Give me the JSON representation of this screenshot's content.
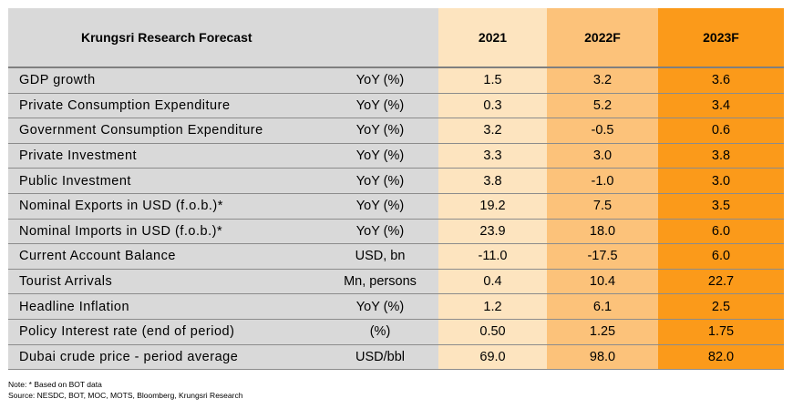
{
  "chart_data": {
    "type": "table",
    "title": "Krungsri Research Forecast",
    "columns": [
      "2021",
      "2022F",
      "2023F"
    ],
    "rows": [
      {
        "label": "GDP growth",
        "unit": "YoY (%)",
        "values": [
          "1.5",
          "3.2",
          "3.6"
        ]
      },
      {
        "label": "Private Consumption Expenditure",
        "unit": "YoY (%)",
        "values": [
          "0.3",
          "5.2",
          "3.4"
        ]
      },
      {
        "label": "Government Consumption Expenditure",
        "unit": "YoY (%)",
        "values": [
          "3.2",
          "-0.5",
          "0.6"
        ]
      },
      {
        "label": "Private Investment",
        "unit": "YoY (%)",
        "values": [
          "3.3",
          "3.0",
          "3.8"
        ]
      },
      {
        "label": "Public Investment",
        "unit": "YoY (%)",
        "values": [
          "3.8",
          "-1.0",
          "3.0"
        ]
      },
      {
        "label": "Nominal Exports in USD (f.o.b.)*",
        "unit": "YoY (%)",
        "values": [
          "19.2",
          "7.5",
          "3.5"
        ]
      },
      {
        "label": "Nominal Imports in USD (f.o.b.)*",
        "unit": "YoY (%)",
        "values": [
          "23.9",
          "18.0",
          "6.0"
        ]
      },
      {
        "label": "Current Account Balance",
        "unit": "USD, bn",
        "values": [
          "-11.0",
          "-17.5",
          "6.0"
        ]
      },
      {
        "label": "Tourist Arrivals",
        "unit": "Mn, persons",
        "values": [
          "0.4",
          "10.4",
          "22.7"
        ]
      },
      {
        "label": "Headline Inflation",
        "unit": "YoY (%)",
        "values": [
          "1.2",
          "6.1",
          "2.5"
        ]
      },
      {
        "label": "Policy Interest rate (end of period)",
        "unit": "(%)",
        "values": [
          "0.50",
          "1.25",
          "1.75"
        ]
      },
      {
        "label": "Dubai crude price - period average",
        "unit": "USD/bbl",
        "values": [
          "69.0",
          "98.0",
          "82.0"
        ]
      }
    ],
    "colors": {
      "label_bg": "#d9d9d9",
      "col_2021": "#fde4bf",
      "col_2022F": "#fcc27a",
      "col_2023F": "#fb9a1a"
    }
  },
  "notes": {
    "note": "Note: * Based on BOT data",
    "source": "Source: NESDC, BOT, MOC, MOTS, Bloomberg, Krungsri Research"
  }
}
